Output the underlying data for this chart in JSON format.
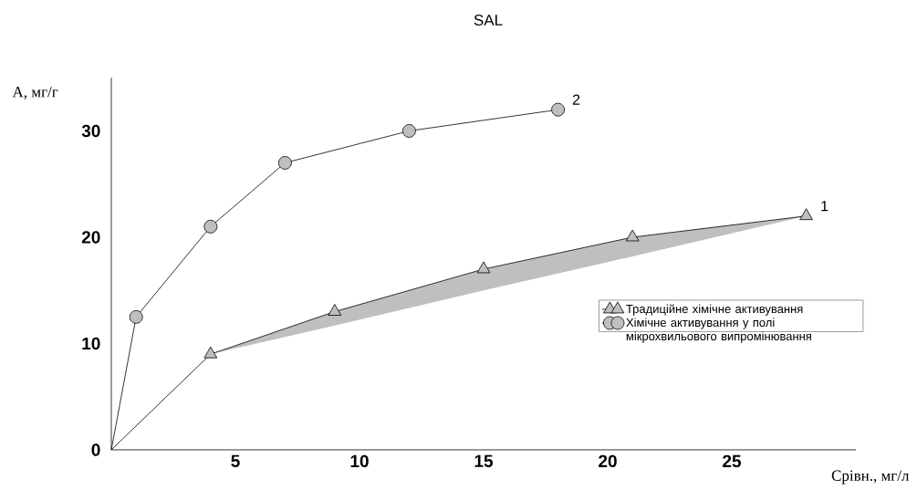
{
  "chart_data": {
    "type": "line",
    "title": "SAL",
    "xlabel": "Срівн., мг/л",
    "ylabel": "А, мг/г",
    "series": [
      {
        "name": "Традиційне хімічне активування",
        "color": "#000000",
        "marker": "triangle",
        "x": [
          0,
          4,
          9,
          15,
          21,
          28
        ],
        "values": [
          0,
          9,
          13,
          17,
          20,
          22
        ],
        "lower": [
          null,
          9,
          11.7,
          15.0,
          18.2,
          22
        ],
        "upper": [
          null,
          9,
          13,
          17,
          20,
          22
        ]
      },
      {
        "name": "Хімічне активування у полі мікрохвильового випромінювання",
        "color": "#000000",
        "marker": "circle",
        "x": [
          0,
          1,
          4,
          7,
          12,
          18
        ],
        "values": [
          0,
          12.5,
          21,
          27,
          30,
          32
        ]
      }
    ],
    "xlim": [
      0,
      30
    ],
    "ylim": [
      0,
      35
    ],
    "xticks": [
      5,
      10,
      15,
      20,
      25
    ],
    "yticks": [
      0,
      10,
      20,
      30
    ],
    "grid": false,
    "legend": "right",
    "annotations": [
      {
        "text": "1",
        "x": 28,
        "y": 22
      },
      {
        "text": "2",
        "x": 18,
        "y": 32
      }
    ]
  }
}
